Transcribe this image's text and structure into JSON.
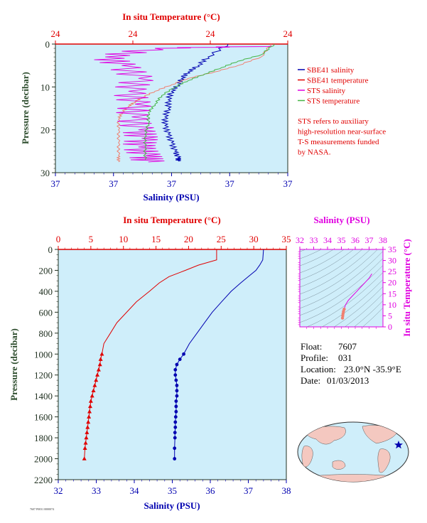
{
  "colors": {
    "red": "#e00000",
    "blue": "#0000b0",
    "magenta": "#e000e0",
    "green": "#46b446",
    "salmon": "#f08070",
    "plot_bg": "#cfeefa",
    "axis_dark": "#203020",
    "left_label": "#2a4a2a"
  },
  "top_panel": {
    "top_axis_label": "In situ Temperature (°C)",
    "bottom_axis_label": "Salinity (PSU)",
    "left_axis_label": "Pressure (decibar)",
    "top_ticks": [
      "24",
      "24",
      "24",
      "24"
    ],
    "bottom_ticks": [
      "37",
      "37",
      "37",
      "37",
      "37"
    ],
    "left_ticks": [
      "0",
      "10",
      "20",
      "30"
    ],
    "legend": [
      {
        "label": "SBE41 salinity",
        "color": "#0000b0"
      },
      {
        "label": "SBE41 temperature",
        "color": "#e00000"
      },
      {
        "label": "STS salinity",
        "color": "#e000e0"
      },
      {
        "label": "STS temperature",
        "color": "#46b446"
      }
    ],
    "note": [
      "STS refers to auxiliary",
      "high-resolution near-surface",
      "T-S measurements funded",
      "by NASA."
    ]
  },
  "profile_panel": {
    "top_axis_label": "In situ Temperature (°C)",
    "bottom_axis_label": "Salinity (PSU)",
    "left_axis_label": "Pressure (decibar)",
    "top_ticks": [
      "0",
      "5",
      "10",
      "15",
      "20",
      "25",
      "30",
      "35"
    ],
    "bottom_ticks": [
      "32",
      "33",
      "34",
      "35",
      "36",
      "37",
      "38"
    ],
    "left_ticks": [
      "0",
      "200",
      "400",
      "600",
      "800",
      "1000",
      "1200",
      "1400",
      "1600",
      "1800",
      "2000",
      "2200"
    ],
    "footer_code": "7607 P0031 0000074"
  },
  "ts_panel": {
    "top_axis_label": "Salinity (PSU)",
    "right_axis_label": "In situ Temperature (°C)",
    "top_ticks": [
      "32",
      "33",
      "34",
      "35",
      "36",
      "37",
      "38"
    ],
    "right_ticks": [
      "0",
      "5",
      "10",
      "15",
      "20",
      "25",
      "30",
      "35"
    ]
  },
  "info": {
    "float_label": "Float:",
    "float_value": "7607",
    "profile_label": "Profile:",
    "profile_value": "031",
    "location_label": "Location:",
    "location_value": "23.0°N  -35.9°E",
    "date_label": "Date:",
    "date_value": "01/03/2013"
  },
  "chart_data": [
    {
      "type": "line",
      "name_ref": "near-surface detail",
      "xlim_salinity": [
        36.9,
        37.6
      ],
      "xlim_temperature": [
        23.9,
        24.6
      ],
      "ylim_pressure": [
        0,
        30
      ],
      "series": [
        {
          "name": "SBE41 salinity",
          "x": [
            37.42,
            37.36,
            37.33,
            37.3,
            37.28,
            37.27,
            37.25,
            37.24,
            37.24,
            37.23,
            37.23,
            37.24,
            37.25,
            37.26,
            37.27,
            37.27
          ],
          "y": [
            0,
            3,
            5,
            6.5,
            8,
            9.5,
            11,
            13,
            15,
            17,
            19,
            21,
            23,
            25,
            26.5,
            27.3
          ]
        },
        {
          "name": "SBE41 temperature",
          "x": [
            24.55,
            24.52,
            24.45,
            24.38,
            24.3,
            24.25,
            24.2,
            24.16,
            24.14,
            24.12,
            24.1,
            24.09,
            24.09,
            24.09,
            24.09,
            24.09
          ],
          "y": [
            0,
            3,
            5,
            6.5,
            8,
            9.5,
            11,
            12.5,
            13.5,
            14.5,
            16,
            17.5,
            20,
            23,
            26,
            27.5
          ]
        },
        {
          "name": "STS salinity",
          "x": [
            37.55,
            37.2,
            37.05,
            37.1,
            37.15,
            37.12,
            37.14,
            37.13,
            37.15,
            37.16,
            37.15,
            37.17,
            37.18
          ],
          "y": [
            0.5,
            1,
            3,
            5,
            8,
            11,
            14,
            17,
            20,
            22,
            24,
            26,
            27.5
          ]
        },
        {
          "name": "STS temperature",
          "x": [
            24.56,
            24.52,
            24.45,
            24.4,
            24.35,
            24.3,
            24.26,
            24.22,
            24.2,
            24.18,
            24.18,
            24.17,
            24.17,
            24.17
          ],
          "y": [
            0,
            2.5,
            4,
            5.5,
            7,
            8.5,
            10,
            12,
            14,
            16,
            18.5,
            21,
            24,
            27
          ]
        }
      ]
    },
    {
      "type": "line",
      "name_ref": "full profile",
      "xlim_salinity": [
        32,
        38
      ],
      "xlim_temperature": [
        0,
        35
      ],
      "ylim_pressure": [
        0,
        2200
      ],
      "series": [
        {
          "name": "salinity",
          "marker": "circle",
          "x": [
            37.4,
            37.38,
            37.3,
            37.2,
            37.0,
            36.8,
            36.55,
            36.3,
            36.05,
            35.85,
            35.65,
            35.45,
            35.3,
            35.2,
            35.12,
            35.08,
            35.08,
            35.1,
            35.12,
            35.12,
            35.12,
            35.1,
            35.1,
            35.1,
            35.09,
            35.08,
            35.08,
            35.07,
            35.07,
            35.06,
            35.06
          ],
          "y": [
            0,
            100,
            150,
            200,
            260,
            320,
            400,
            500,
            600,
            700,
            800,
            900,
            1000,
            1050,
            1100,
            1150,
            1200,
            1250,
            1300,
            1350,
            1400,
            1450,
            1500,
            1550,
            1600,
            1650,
            1700,
            1750,
            1800,
            1900,
            2000
          ]
        },
        {
          "name": "temperature",
          "marker": "triangle",
          "x": [
            24.3,
            24.3,
            21.5,
            19.5,
            17.0,
            15.5,
            14.0,
            12.0,
            10.5,
            9.0,
            8.0,
            7.0,
            6.7,
            6.5,
            6.4,
            6.2,
            6.0,
            5.8,
            5.6,
            5.4,
            5.2,
            5.0,
            4.9,
            4.8,
            4.7,
            4.6,
            4.5,
            4.4,
            4.3,
            4.2,
            4.1,
            4.0
          ],
          "y": [
            0,
            100,
            150,
            200,
            260,
            320,
            400,
            500,
            600,
            700,
            800,
            900,
            1000,
            1050,
            1100,
            1150,
            1200,
            1250,
            1300,
            1350,
            1400,
            1450,
            1500,
            1550,
            1600,
            1650,
            1700,
            1750,
            1800,
            1850,
            1900,
            2000
          ]
        }
      ]
    },
    {
      "type": "scatter",
      "name_ref": "T-S diagram",
      "xlim_salinity": [
        32,
        38
      ],
      "ylim_temperature": [
        0,
        35
      ],
      "x": [
        37.2,
        37.0,
        36.7,
        36.4,
        36.1,
        35.8,
        35.5,
        35.3,
        35.2,
        35.15,
        35.12,
        35.1,
        35.08
      ],
      "y": [
        24,
        22,
        20,
        18,
        16,
        14,
        12,
        10,
        8,
        7,
        6,
        5,
        4
      ]
    }
  ]
}
